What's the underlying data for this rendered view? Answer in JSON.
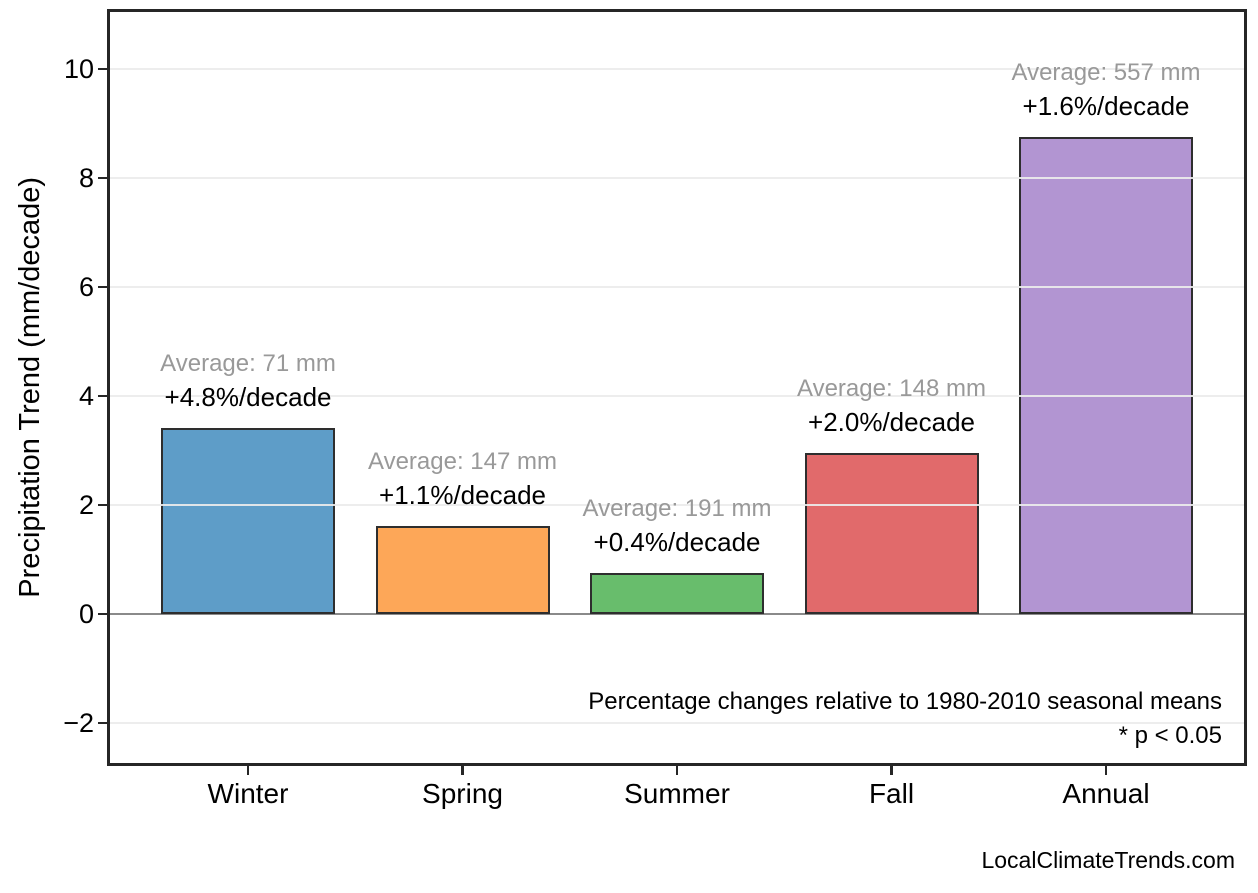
{
  "chart_data": {
    "type": "bar",
    "title": "",
    "xlabel": "",
    "ylabel": "Precipitation Trend (mm/decade)",
    "categories": [
      "Winter",
      "Spring",
      "Summer",
      "Fall",
      "Annual"
    ],
    "values": [
      3.41,
      1.62,
      0.76,
      2.96,
      8.75
    ],
    "bar_colors": [
      "#5E9DC8",
      "#FDA758",
      "#68BD6C",
      "#E16A6B",
      "#B295D2"
    ],
    "bar_edge_color": "#2E2E2E",
    "bar_labels": [
      {
        "average": "Average: 71 mm",
        "trend": "+4.8%/decade"
      },
      {
        "average": "Average: 147 mm",
        "trend": "+1.1%/decade"
      },
      {
        "average": "Average: 191 mm",
        "trend": "+0.4%/decade"
      },
      {
        "average": "Average: 148 mm",
        "trend": "+2.0%/decade"
      },
      {
        "average": "Average: 557 mm",
        "trend": "+1.6%/decade"
      }
    ],
    "average_label_color": "#999999",
    "y_ticks": [
      10,
      8,
      6,
      4,
      2,
      0,
      -2
    ],
    "y_tick_labels": [
      "10",
      "8",
      "6",
      "4",
      "2",
      "0",
      "−2"
    ],
    "ylim": [
      -2.73,
      11.05
    ],
    "grid": "horizontal, drawn above bars",
    "legend": "none",
    "zero_line_color": "#8A8A8A",
    "annotations": {
      "note_line1": "Percentage changes relative to 1980-2010 seasonal means",
      "note_line2": "* p < 0.05"
    },
    "watermark": "LocalClimateTrends.com"
  }
}
